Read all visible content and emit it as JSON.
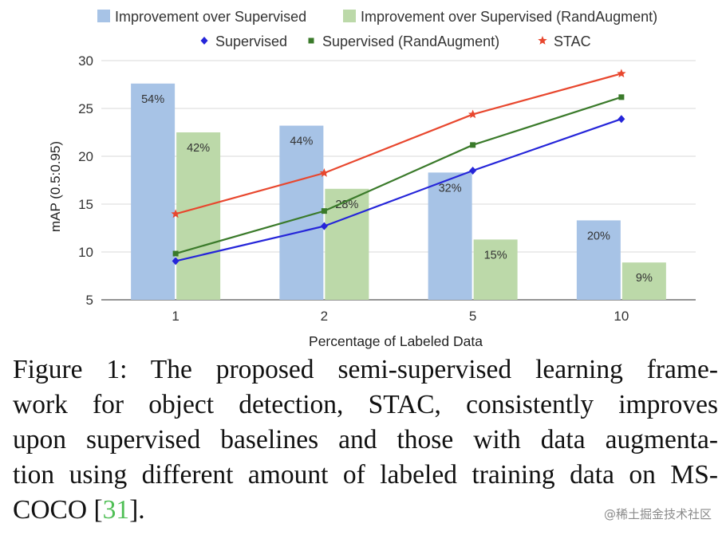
{
  "chart_data": {
    "type": "bar+line",
    "categories": [
      "1",
      "2",
      "5",
      "10"
    ],
    "xlabel": "Percentage of Labeled Data",
    "ylabel": "mAP (0.5:0.95)",
    "ylim": [
      5,
      30
    ],
    "yticks": [
      5,
      10,
      15,
      20,
      25,
      30
    ],
    "grid": true,
    "legend_position": "top",
    "bar_series": [
      {
        "name": "Improvement over Supervised",
        "values": [
          27.6,
          23.2,
          18.3,
          13.3
        ],
        "labels": [
          "54%",
          "44%",
          "32%",
          "20%"
        ],
        "color": "#a7c3e6"
      },
      {
        "name": "Improvement over Supervised (RandAugment)",
        "values": [
          22.5,
          16.6,
          11.3,
          8.9
        ],
        "labels": [
          "42%",
          "28%",
          "15%",
          "9%"
        ],
        "color": "#bcd9a9"
      }
    ],
    "line_series": [
      {
        "name": "Supervised",
        "values": [
          9.05,
          12.7,
          18.5,
          23.9
        ],
        "color": "#2525d9",
        "marker": "diamond"
      },
      {
        "name": "Supervised (RandAugment)",
        "values": [
          9.83,
          14.28,
          21.18,
          26.18
        ],
        "color": "#3a7a2a",
        "marker": "square"
      },
      {
        "name": "STAC",
        "values": [
          13.97,
          18.25,
          24.38,
          28.64
        ],
        "color": "#e8472e",
        "marker": "star"
      }
    ]
  },
  "caption": {
    "text_before": "Figure 1:  The proposed semi-supervised learning frame-work for object detection, STAC, consistently improves upon supervised baselines and those with data augmenta-tion using different amount of labeled training data on MS-COCO ",
    "ref_open": "[",
    "ref": "31",
    "ref_close": "].",
    "line1": "Figure 1:  The proposed semi-supervised learning frame-",
    "line2": "work for object detection, STAC, consistently improves",
    "line3": "upon supervised baselines and those with data augmenta-",
    "line4": "tion using different amount of labeled training data on MS-",
    "line5_prefix": "COCO "
  },
  "watermark": "@稀土掘金技术社区"
}
